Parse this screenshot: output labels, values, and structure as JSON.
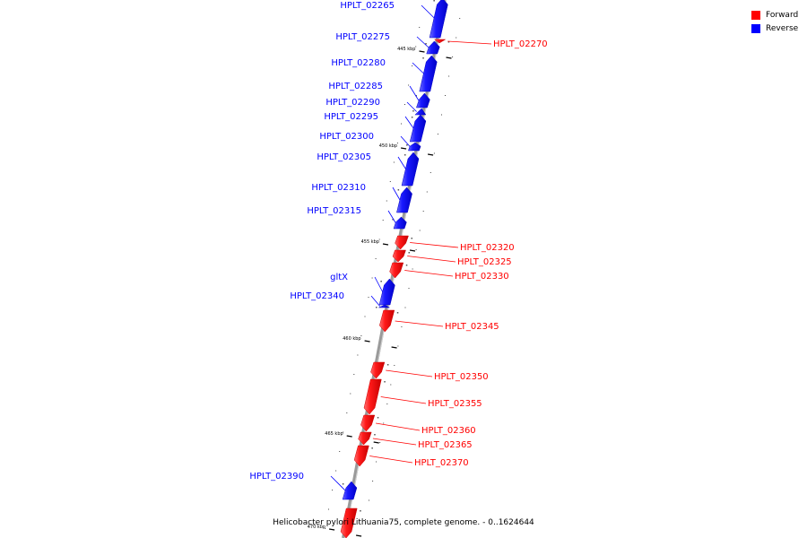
{
  "legend": {
    "forward": {
      "label": "Forward",
      "color": "#ff0000"
    },
    "reverse": {
      "label": "Reverse",
      "color": "#0000ff"
    }
  },
  "caption": "Helicobacter pylori Lithuania75, complete genome. - 0..1624644",
  "ticks": [
    {
      "label": "445 kbp"
    },
    {
      "label": "450 kbp"
    },
    {
      "label": "455 kbp"
    },
    {
      "label": "460 kbp"
    },
    {
      "label": "465 kbp"
    },
    {
      "label": "470 kbp"
    }
  ],
  "genes": [
    {
      "name": "HPLT_02265",
      "strand": "reverse"
    },
    {
      "name": "HPLT_02270",
      "strand": "forward"
    },
    {
      "name": "HPLT_02275",
      "strand": "reverse"
    },
    {
      "name": "HPLT_02280",
      "strand": "reverse"
    },
    {
      "name": "HPLT_02285",
      "strand": "reverse"
    },
    {
      "name": "HPLT_02290",
      "strand": "reverse"
    },
    {
      "name": "HPLT_02295",
      "strand": "reverse"
    },
    {
      "name": "HPLT_02300",
      "strand": "reverse"
    },
    {
      "name": "HPLT_02305",
      "strand": "reverse"
    },
    {
      "name": "HPLT_02310",
      "strand": "reverse"
    },
    {
      "name": "HPLT_02315",
      "strand": "reverse"
    },
    {
      "name": "HPLT_02320",
      "strand": "forward"
    },
    {
      "name": "HPLT_02325",
      "strand": "forward"
    },
    {
      "name": "HPLT_02330",
      "strand": "forward"
    },
    {
      "name": "gltX",
      "strand": "reverse"
    },
    {
      "name": "HPLT_02340",
      "strand": "reverse"
    },
    {
      "name": "HPLT_02345",
      "strand": "forward"
    },
    {
      "name": "HPLT_02350",
      "strand": "forward"
    },
    {
      "name": "HPLT_02355",
      "strand": "forward"
    },
    {
      "name": "HPLT_02360",
      "strand": "forward"
    },
    {
      "name": "HPLT_02365",
      "strand": "forward"
    },
    {
      "name": "HPLT_02370",
      "strand": "forward"
    },
    {
      "name": "HPLT_02390",
      "strand": "reverse"
    },
    {
      "name": "",
      "strand": "forward"
    }
  ]
}
